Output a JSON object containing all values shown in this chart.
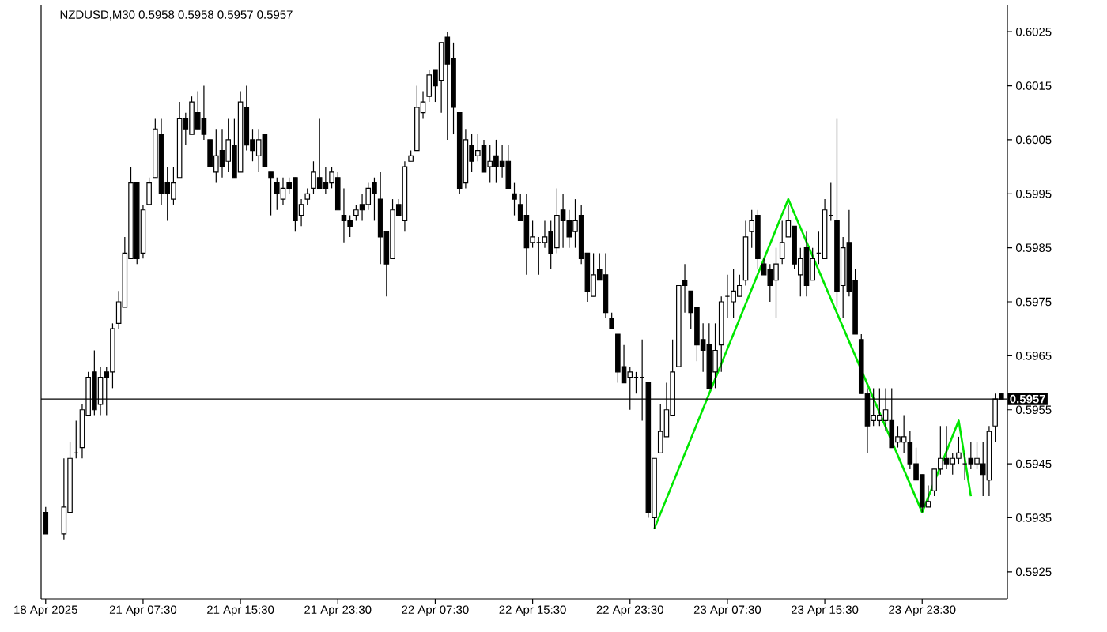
{
  "chart_data": {
    "type": "candlestick",
    "title": "NZDUSD,M30  0.5958 0.5958 0.5957 0.5957",
    "categories": [
      "18 Apr 2025",
      null,
      null,
      null,
      null,
      null,
      null,
      null,
      null,
      null,
      null,
      null,
      null,
      null,
      null,
      null,
      "21 Apr 07:30",
      null,
      null,
      null,
      null,
      null,
      null,
      null,
      null,
      null,
      null,
      null,
      null,
      null,
      null,
      null,
      "21 Apr 15:30",
      null,
      null,
      null,
      null,
      null,
      null,
      null,
      null,
      null,
      null,
      null,
      null,
      null,
      null,
      null,
      "21 Apr 23:30",
      null,
      null,
      null,
      null,
      null,
      null,
      null,
      null,
      null,
      null,
      null,
      null,
      null,
      null,
      null,
      "22 Apr 07:30",
      null,
      null,
      null,
      null,
      null,
      null,
      null,
      null,
      null,
      null,
      null,
      null,
      null,
      null,
      null,
      "22 Apr 15:30",
      null,
      null,
      null,
      null,
      null,
      null,
      null,
      null,
      null,
      null,
      null,
      null,
      null,
      null,
      null,
      "22 Apr 23:30",
      null,
      null,
      null,
      null,
      null,
      null,
      null,
      null,
      null,
      null,
      null,
      null,
      null,
      null,
      null,
      "23 Apr 07:30",
      null,
      null,
      null,
      null,
      null,
      null,
      null,
      null,
      null,
      null,
      null,
      null,
      null,
      null,
      null,
      "23 Apr 15:30",
      null,
      null,
      null,
      null,
      null,
      null,
      null,
      null,
      null,
      null,
      null,
      null,
      null,
      null,
      null,
      "23 Apr 23:30",
      null,
      null,
      null,
      null,
      null,
      null,
      null,
      null,
      null,
      null,
      null,
      null,
      null
    ],
    "ohlc": [
      [
        0.5936,
        0.5937,
        0.5932,
        0.5932
      ],
      null,
      null,
      [
        0.5932,
        0.5946,
        0.5931,
        0.5937
      ],
      [
        0.5936,
        0.5949,
        0.5936,
        0.5946
      ],
      [
        0.5947,
        0.5953,
        0.5946,
        0.5947
      ],
      [
        0.5948,
        0.5956,
        0.5946,
        0.5955
      ],
      [
        0.5954,
        0.5962,
        0.5954,
        0.5961
      ],
      [
        0.5962,
        0.5966,
        0.5954,
        0.5955
      ],
      [
        0.5956,
        0.5963,
        0.5954,
        0.5961
      ],
      [
        0.5962,
        0.5963,
        0.5954,
        0.5961
      ],
      [
        0.5962,
        0.5971,
        0.5959,
        0.597
      ],
      [
        0.5971,
        0.5977,
        0.597,
        0.5975
      ],
      [
        0.5974,
        0.5987,
        0.5974,
        0.5984
      ],
      [
        0.5983,
        0.6,
        0.5983,
        0.5997
      ],
      [
        0.5997,
        0.5997,
        0.5982,
        0.5983
      ],
      [
        0.5984,
        0.5993,
        0.5983,
        0.5992
      ],
      [
        0.5993,
        0.5998,
        0.5993,
        0.5997
      ],
      [
        0.5998,
        0.6009,
        0.5998,
        0.6007
      ],
      [
        0.6006,
        0.6009,
        0.5993,
        0.5995
      ],
      [
        0.5997,
        0.6,
        0.599,
        0.5995
      ],
      [
        0.5994,
        0.6,
        0.5993,
        0.5997
      ],
      [
        0.5998,
        0.6012,
        0.5998,
        0.6009
      ],
      [
        0.6009,
        0.601,
        0.6004,
        0.6007
      ],
      [
        0.6006,
        0.6013,
        0.6006,
        0.6012
      ],
      [
        0.601,
        0.6014,
        0.6007,
        0.6007
      ],
      [
        0.6009,
        0.6015,
        0.6005,
        0.6006
      ],
      [
        0.6005,
        0.6005,
        0.6,
        0.6
      ],
      [
        0.5999,
        0.6007,
        0.5997,
        0.6002
      ],
      [
        0.6003,
        0.6007,
        0.5998,
        0.6
      ],
      [
        0.6001,
        0.6009,
        0.5999,
        0.6005
      ],
      [
        0.6004,
        0.6009,
        0.5998,
        0.5998
      ],
      [
        0.5999,
        0.6014,
        0.5999,
        0.6012
      ],
      [
        0.6011,
        0.6015,
        0.6003,
        0.6004
      ],
      [
        0.6005,
        0.6007,
        0.6001,
        0.6003
      ],
      [
        0.6002,
        0.6007,
        0.5999,
        0.6005
      ],
      [
        0.6006,
        0.6006,
        0.6,
        0.6
      ],
      [
        0.5999,
        0.5999,
        0.5991,
        0.5998
      ],
      [
        0.5997,
        0.5998,
        0.5992,
        0.5995
      ],
      [
        0.5994,
        0.5998,
        0.5993,
        0.5996
      ],
      [
        0.5997,
        0.5998,
        0.5995,
        0.5996
      ],
      [
        0.5998,
        0.5998,
        0.5988,
        0.599
      ],
      [
        0.5991,
        0.5994,
        0.5989,
        0.5993
      ],
      [
        0.5994,
        0.5996,
        0.5993,
        0.5995
      ],
      [
        0.5996,
        0.6001,
        0.5995,
        0.5999
      ],
      [
        0.5998,
        0.6009,
        0.5996,
        0.5996
      ],
      [
        0.5997,
        0.6,
        0.5995,
        0.5996
      ],
      [
        0.5997,
        0.6,
        0.5996,
        0.5999
      ],
      [
        0.5998,
        0.5999,
        0.5992,
        0.5992
      ],
      [
        0.5991,
        0.5996,
        0.5986,
        0.599
      ],
      [
        0.599,
        0.5991,
        0.5987,
        0.5989
      ],
      [
        0.5991,
        0.5993,
        0.599,
        0.5992
      ],
      [
        0.5993,
        0.5995,
        0.599,
        0.5992
      ],
      [
        0.5993,
        0.5997,
        0.5992,
        0.5996
      ],
      [
        0.5997,
        0.5998,
        0.599,
        0.5995
      ],
      [
        0.5994,
        0.5999,
        0.5982,
        0.5987
      ],
      [
        0.5988,
        0.5988,
        0.5976,
        0.5982
      ],
      [
        0.5983,
        0.5994,
        0.5983,
        0.5992
      ],
      [
        0.5993,
        0.5994,
        0.5991,
        0.5991
      ],
      [
        0.599,
        0.6001,
        0.5988,
        0.6
      ],
      [
        0.6001,
        0.6003,
        0.6001,
        0.6002
      ],
      [
        0.6003,
        0.6015,
        0.6003,
        0.6011
      ],
      [
        0.601,
        0.6014,
        0.6009,
        0.6012
      ],
      [
        0.6013,
        0.6018,
        0.6012,
        0.6017
      ],
      [
        0.6018,
        0.6018,
        0.6012,
        0.6015
      ],
      [
        0.6016,
        0.6023,
        0.601,
        0.6023
      ],
      [
        0.6024,
        0.6025,
        0.6005,
        0.6019
      ],
      [
        0.602,
        0.6023,
        0.6006,
        0.6011
      ],
      [
        0.601,
        0.601,
        0.5995,
        0.5996
      ],
      [
        0.5997,
        0.6007,
        0.5996,
        0.6005
      ],
      [
        0.6004,
        0.6006,
        0.5999,
        0.6001
      ],
      [
        0.6002,
        0.6006,
        0.6001,
        0.6003
      ],
      [
        0.6004,
        0.6005,
        0.5999,
        0.5999
      ],
      [
        0.6,
        0.6004,
        0.5997,
        0.6001
      ],
      [
        0.6002,
        0.6005,
        0.5997,
        0.6
      ],
      [
        0.6001,
        0.6004,
        0.5998,
        0.6
      ],
      [
        0.6001,
        0.6004,
        0.5996,
        0.5996
      ],
      [
        0.5995,
        0.5997,
        0.5991,
        0.5994
      ],
      [
        0.5993,
        0.5995,
        0.599,
        0.599
      ],
      [
        0.5991,
        0.5995,
        0.598,
        0.5985
      ],
      [
        0.5986,
        0.599,
        0.5985,
        0.5987
      ],
      [
        0.5986,
        0.5987,
        0.598,
        0.5986
      ],
      [
        0.5986,
        0.599,
        0.5985,
        0.5987
      ],
      [
        0.5988,
        0.599,
        0.5981,
        0.5984
      ],
      [
        0.5985,
        0.5996,
        0.5984,
        0.5991
      ],
      [
        0.5992,
        0.5995,
        0.5985,
        0.599
      ],
      [
        0.599,
        0.5992,
        0.5985,
        0.5987
      ],
      [
        0.5988,
        0.5994,
        0.5985,
        0.599
      ],
      [
        0.5991,
        0.5993,
        0.5982,
        0.5983
      ],
      [
        0.5984,
        0.5984,
        0.5975,
        0.5977
      ],
      [
        0.5976,
        0.5984,
        0.5976,
        0.598
      ],
      [
        0.5981,
        0.5984,
        0.5979,
        0.5979
      ],
      [
        0.598,
        0.5984,
        0.5972,
        0.5973
      ],
      [
        0.5972,
        0.5973,
        0.597,
        0.597
      ],
      [
        0.5969,
        0.5969,
        0.596,
        0.5962
      ],
      [
        0.5963,
        0.5967,
        0.596,
        0.596
      ],
      [
        0.5961,
        0.5963,
        0.5955,
        0.5962
      ],
      [
        0.5961,
        0.5962,
        0.5958,
        0.5961
      ],
      [
        0.5961,
        0.5968,
        0.5953,
        0.5961
      ],
      [
        0.596,
        0.596,
        0.5935,
        0.5936
      ],
      [
        0.5935,
        0.5946,
        0.5933,
        0.5946
      ],
      [
        0.5947,
        0.5956,
        0.5947,
        0.5951
      ],
      [
        0.595,
        0.596,
        0.595,
        0.5955
      ],
      [
        0.5954,
        0.5968,
        0.5954,
        0.5962
      ],
      [
        0.5963,
        0.5978,
        0.5963,
        0.5978
      ],
      [
        0.5979,
        0.5982,
        0.5973,
        0.5978
      ],
      [
        0.5977,
        0.5977,
        0.597,
        0.5973
      ],
      [
        0.5974,
        0.5974,
        0.5964,
        0.5967
      ],
      [
        0.5968,
        0.5971,
        0.5962,
        0.5966
      ],
      [
        0.5967,
        0.5971,
        0.5959,
        0.5959
      ],
      [
        0.5962,
        0.5971,
        0.5959,
        0.5966
      ],
      [
        0.5967,
        0.5976,
        0.5962,
        0.5975
      ],
      [
        0.5976,
        0.598,
        0.5972,
        0.5976
      ],
      [
        0.5975,
        0.5981,
        0.5972,
        0.5977
      ],
      [
        0.5976,
        0.598,
        0.5976,
        0.5978
      ],
      [
        0.5979,
        0.599,
        0.5978,
        0.5987
      ],
      [
        0.5988,
        0.5992,
        0.5985,
        0.599
      ],
      [
        0.5991,
        0.5992,
        0.5981,
        0.5983
      ],
      [
        0.5982,
        0.5983,
        0.598,
        0.598
      ],
      [
        0.5981,
        0.5982,
        0.5975,
        0.5978
      ],
      [
        0.5979,
        0.5985,
        0.5972,
        0.5982
      ],
      [
        0.5983,
        0.599,
        0.5982,
        0.5986
      ],
      [
        0.5987,
        0.5993,
        0.5987,
        0.599
      ],
      [
        0.5989,
        0.5989,
        0.5981,
        0.5982
      ],
      [
        0.598,
        0.5985,
        0.5976,
        0.5983
      ],
      [
        0.5985,
        0.5988,
        0.5976,
        0.5978
      ],
      [
        0.5979,
        0.5985,
        0.5979,
        0.5983
      ],
      [
        0.5984,
        0.5988,
        0.5982,
        0.5984
      ],
      [
        0.5983,
        0.5994,
        0.5983,
        0.5992
      ],
      [
        0.5991,
        0.5997,
        0.599,
        0.5991
      ],
      [
        0.599,
        0.6009,
        0.5974,
        0.5977
      ],
      [
        0.5978,
        0.5987,
        0.5972,
        0.5985
      ],
      [
        0.5986,
        0.5992,
        0.5976,
        0.5977
      ],
      [
        0.5979,
        0.5981,
        0.5969,
        0.5969
      ],
      [
        0.5968,
        0.5969,
        0.5958,
        0.5958
      ],
      [
        0.5958,
        0.5959,
        0.5947,
        0.5952
      ],
      [
        0.5953,
        0.5959,
        0.5952,
        0.5954
      ],
      [
        0.5953,
        0.5959,
        0.5952,
        0.5954
      ],
      [
        0.5953,
        0.5959,
        0.5951,
        0.5955
      ],
      [
        0.5953,
        0.5959,
        0.5948,
        0.5948
      ],
      [
        0.5949,
        0.5952,
        0.5948,
        0.595
      ],
      [
        0.5949,
        0.5954,
        0.5947,
        0.595
      ],
      [
        0.5949,
        0.5951,
        0.5944,
        0.5945
      ],
      [
        0.5945,
        0.5948,
        0.5942,
        0.5942
      ],
      [
        0.5943,
        0.5943,
        0.5936,
        0.5937
      ],
      [
        0.5937,
        0.5941,
        0.5937,
        0.5938
      ],
      [
        0.594,
        0.5944,
        0.5939,
        0.5944
      ],
      [
        0.5944,
        0.5952,
        0.5943,
        0.5946
      ],
      [
        0.5946,
        0.5952,
        0.5944,
        0.5945
      ],
      [
        0.5945,
        0.5947,
        0.5943,
        0.5946
      ],
      [
        0.5946,
        0.595,
        0.5945,
        0.5947
      ],
      [
        0.5945,
        0.5947,
        0.5942,
        0.5945
      ],
      [
        0.5946,
        0.5949,
        0.5944,
        0.5945
      ],
      [
        0.5945,
        0.5949,
        0.5944,
        0.5946
      ],
      [
        0.5945,
        0.5949,
        0.5939,
        0.5943
      ],
      [
        0.5942,
        0.5952,
        0.5939,
        0.5951
      ],
      [
        0.5952,
        0.5958,
        0.5949,
        0.5957
      ],
      [
        0.5958,
        0.5958,
        0.5957,
        0.5957
      ]
    ],
    "series": [
      {
        "type": "line",
        "color": "#00e600",
        "values": [
          null,
          null,
          null,
          null,
          null,
          null,
          null,
          null,
          null,
          null,
          null,
          null,
          null,
          null,
          null,
          null,
          null,
          null,
          null,
          null,
          null,
          null,
          null,
          null,
          null,
          null,
          null,
          null,
          null,
          null,
          null,
          null,
          null,
          null,
          null,
          null,
          null,
          null,
          null,
          null,
          null,
          null,
          null,
          null,
          null,
          null,
          null,
          null,
          null,
          null,
          null,
          null,
          null,
          null,
          null,
          null,
          null,
          null,
          null,
          null,
          null,
          null,
          null,
          null,
          null,
          null,
          null,
          null,
          null,
          null,
          null,
          null,
          null,
          null,
          null,
          null,
          null,
          null,
          null,
          null,
          null,
          null,
          null,
          null,
          null,
          null,
          null,
          null,
          null,
          null,
          null,
          null,
          null,
          null,
          null,
          null,
          null,
          null,
          null,
          null,
          0.5933,
          null,
          null,
          null,
          null,
          null,
          null,
          null,
          null,
          null,
          null,
          null,
          null,
          null,
          null,
          null,
          null,
          null,
          null,
          null,
          null,
          null,
          0.5994,
          null,
          null,
          null,
          null,
          null,
          null,
          null,
          null,
          null,
          null,
          null,
          null,
          null,
          null,
          null,
          null,
          null,
          null,
          null,
          null,
          null,
          0.5936,
          null,
          null,
          null,
          null,
          null,
          0.5953,
          null,
          0.5939,
          null,
          null,
          null,
          null,
          null
        ]
      }
    ],
    "ylim": [
      0.592,
      0.603
    ],
    "yticks": [
      0.5925,
      0.5935,
      0.5945,
      0.5955,
      0.5965,
      0.5975,
      0.5985,
      0.5995,
      0.6005,
      0.6015,
      0.6025
    ],
    "ref_lines": [
      {
        "axis": "y",
        "value": 0.5957,
        "label": "0.5957",
        "color": "#000000"
      }
    ]
  }
}
